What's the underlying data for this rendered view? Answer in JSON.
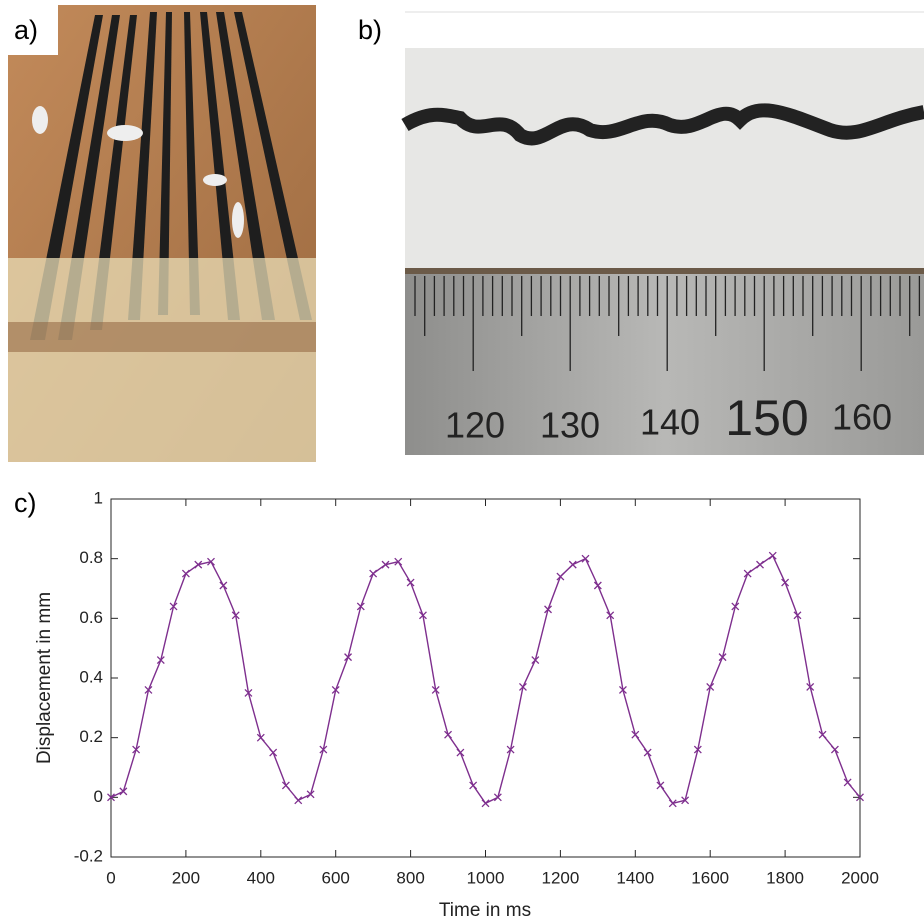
{
  "panels": {
    "a": {
      "label": "a)"
    },
    "b": {
      "label": "b)",
      "ruler_labels": [
        "120",
        "130",
        "140",
        "150",
        "160"
      ]
    }
  },
  "chart_data": {
    "type": "line",
    "panel_label": "c)",
    "xlabel": "Time in ms",
    "ylabel": "Displacement in mm",
    "x": [
      0,
      33,
      67,
      100,
      133,
      167,
      200,
      233,
      267,
      300,
      333,
      367,
      400,
      433,
      467,
      500,
      533,
      567,
      600,
      633,
      667,
      700,
      733,
      767,
      800,
      833,
      867,
      900,
      933,
      967,
      1000,
      1033,
      1067,
      1100,
      1133,
      1167,
      1200,
      1233,
      1267,
      1300,
      1333,
      1367,
      1400,
      1433,
      1467,
      1500,
      1533,
      1567,
      1600,
      1633,
      1667,
      1700,
      1733,
      1767,
      1800,
      1833,
      1867,
      1900,
      1933,
      1967,
      2000
    ],
    "values": [
      0,
      0.02,
      0.16,
      0.36,
      0.46,
      0.64,
      0.75,
      0.78,
      0.79,
      0.71,
      0.61,
      0.35,
      0.2,
      0.15,
      0.04,
      -0.01,
      0.01,
      0.16,
      0.36,
      0.47,
      0.64,
      0.75,
      0.78,
      0.79,
      0.72,
      0.61,
      0.36,
      0.21,
      0.15,
      0.04,
      -0.02,
      0,
      0.16,
      0.37,
      0.46,
      0.63,
      0.74,
      0.78,
      0.8,
      0.71,
      0.61,
      0.36,
      0.21,
      0.15,
      0.04,
      -0.02,
      -0.01,
      0.16,
      0.37,
      0.47,
      0.64,
      0.75,
      0.78,
      0.81,
      0.72,
      0.61,
      0.37,
      0.21,
      0.16,
      0.05,
      0
    ],
    "color": "#7e2f8e",
    "marker": "x",
    "xlim": [
      0,
      2000
    ],
    "xticks": [
      0,
      200,
      400,
      600,
      800,
      1000,
      1200,
      1400,
      1600,
      1800,
      2000
    ],
    "ylim": [
      -0.2,
      1
    ],
    "yticks": [
      -0.2,
      0,
      0.2,
      0.4,
      0.6,
      0.8,
      1
    ],
    "grid": false
  }
}
